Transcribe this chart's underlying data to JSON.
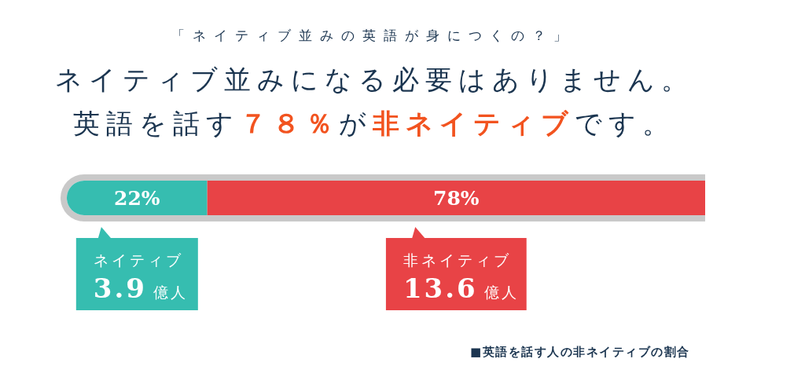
{
  "chart_data": {
    "type": "bar",
    "orientation": "horizontal",
    "stacked": true,
    "subtitle": "「ネイティブ並みの英語が身につくの？」",
    "title": "ネイティブ並みになる必要はありません。英語を話す**７８％**が**非ネイティブ**です。",
    "categories": [
      null
    ],
    "xlim": [
      0,
      100
    ],
    "tick_labels": false,
    "legend": "bottom",
    "series": [
      {
        "name": "ネイティブ",
        "color": "#36bdb0",
        "values": [
          22
        ],
        "value_labels": [
          "22%"
        ]
      },
      {
        "name": "非ネイティブ",
        "color": "#e84346",
        "values": [
          78
        ],
        "value_labels": [
          "78%"
        ]
      }
    ],
    "annotations": [
      "3.9億人",
      "13.6億人",
      "■英語を話す人の非ネイティブの割合"
    ]
  }
}
